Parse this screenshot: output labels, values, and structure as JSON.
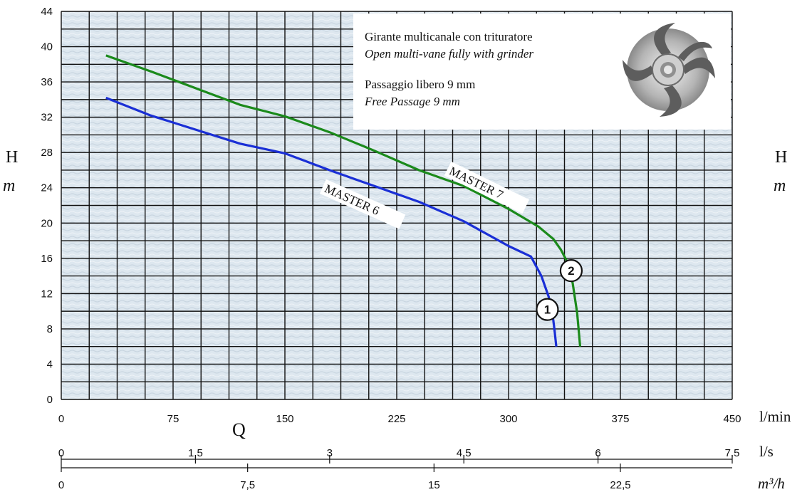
{
  "info": {
    "line1": "Girante multicanale con trituratore",
    "line2": "Open multi-vane fully with grinder",
    "line3": "Passaggio libero 9 mm",
    "line4": "Free Passage 9 mm",
    "impeller_image": "impeller-icon"
  },
  "colors": {
    "grid": "#111111",
    "plot_background": "#dbe6ee",
    "master6": "#1a2fd6",
    "master7": "#1b8a1b"
  },
  "chart_data": {
    "type": "line",
    "x_unit": "l/min",
    "xlim": [
      0,
      450
    ],
    "ylim": [
      0,
      44
    ],
    "x_ticks": [
      0,
      75,
      150,
      225,
      300,
      375,
      450
    ],
    "y_ticks": [
      0,
      4,
      8,
      12,
      16,
      20,
      24,
      28,
      32,
      36,
      40,
      44
    ],
    "grid": true,
    "y_label_left": {
      "name": "H",
      "unit": "m"
    },
    "y_label_right": {
      "name": "H",
      "unit": "m"
    },
    "x_label_name": "Q",
    "secondary_axes": [
      {
        "unit": "l/s",
        "ticks": [
          "0",
          "1,5",
          "3",
          "4,5",
          "6",
          "7,5"
        ],
        "max": 7.5
      },
      {
        "unit": "m³/h",
        "ticks": [
          "0",
          "7,5",
          "15",
          "22,5"
        ],
        "max": 27
      }
    ],
    "series": [
      {
        "name": "MASTER 6",
        "marker": "1",
        "x": [
          30,
          60,
          90,
          120,
          150,
          180,
          210,
          240,
          270,
          300,
          315,
          322,
          327,
          330,
          331,
          332
        ],
        "y": [
          34.2,
          32.2,
          30.6,
          29.0,
          27.9,
          26.0,
          24.2,
          22.4,
          20.2,
          17.4,
          16.2,
          14.0,
          11.6,
          9.0,
          7.6,
          6.0
        ]
      },
      {
        "name": "MASTER 7",
        "marker": "2",
        "x": [
          30,
          60,
          90,
          120,
          150,
          180,
          210,
          240,
          270,
          300,
          320,
          330,
          335,
          340,
          343,
          346,
          348
        ],
        "y": [
          39.0,
          37.2,
          35.3,
          33.4,
          32.1,
          30.3,
          28.2,
          26.0,
          24.2,
          21.6,
          19.6,
          18.2,
          17.0,
          15.4,
          13.2,
          9.8,
          6.0
        ]
      }
    ]
  }
}
